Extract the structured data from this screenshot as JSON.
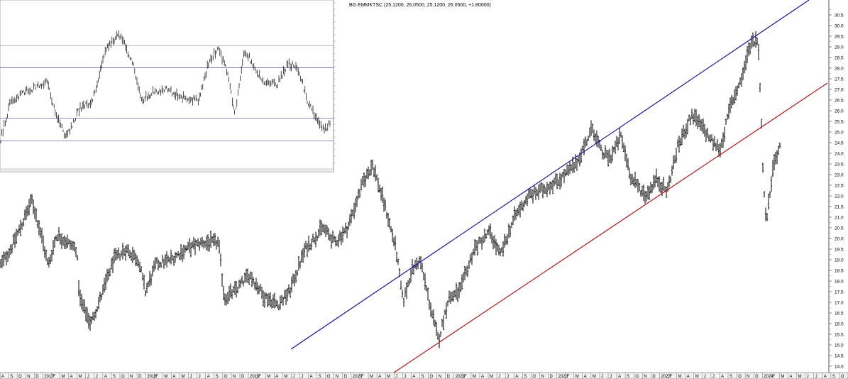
{
  "chart_data": [
    {
      "type": "ohlc",
      "title": "BG EMMKTSC (25.1200, 26.0500, 25.1200, 26.0500, +1.80000)",
      "ylim": [
        13.7,
        31.2
      ],
      "y_ticks": [
        "14.0",
        "14.5",
        "15.0",
        "15.5",
        "16.0",
        "16.5",
        "17.0",
        "17.5",
        "18.0",
        "18.5",
        "19.0",
        "19.5",
        "20.0",
        "20.5",
        "21.0",
        "21.5",
        "22.0",
        "22.5",
        "23.0",
        "23.5",
        "24.0",
        "24.5",
        "25.0",
        "25.5",
        "26.0",
        "26.5",
        "27.0",
        "27.5",
        "28.0",
        "28.5",
        "29.0",
        "29.5",
        "30.0",
        "30.5"
      ],
      "x_labels": [
        "A",
        "S",
        "O",
        "N",
        "D",
        "2017",
        "F",
        "M",
        "A",
        "M",
        "J",
        "J",
        "A",
        "S",
        "O",
        "N",
        "D",
        "2018",
        "F",
        "M",
        "A",
        "M",
        "J",
        "J",
        "A",
        "S",
        "O",
        "N",
        "D",
        "2019",
        "F",
        "M",
        "A",
        "M",
        "J",
        "J",
        "A",
        "S",
        "O",
        "N",
        "D",
        "2020",
        "F",
        "M",
        "A",
        "M",
        "J",
        "J",
        "A",
        "S",
        "O",
        "N",
        "D",
        "2021",
        "F",
        "M",
        "A",
        "M",
        "J",
        "J",
        "A",
        "S",
        "O",
        "N",
        "D",
        "2022",
        "F",
        "M",
        "A",
        "M",
        "J",
        "J",
        "A",
        "S",
        "O",
        "N",
        "D",
        "2023",
        "F",
        "M",
        "A",
        "M",
        "J",
        "J",
        "A",
        "S",
        "O",
        "N",
        "D",
        "2024",
        "F",
        "M",
        "A",
        "M",
        "J",
        "J",
        "A",
        "S",
        "O"
      ],
      "anchors": [
        {
          "x": 0,
          "y": 18.7
        },
        {
          "x": 15,
          "y": 19.5
        },
        {
          "x": 30,
          "y": 20.6
        },
        {
          "x": 45,
          "y": 21.8
        },
        {
          "x": 58,
          "y": 20.2
        },
        {
          "x": 68,
          "y": 18.7
        },
        {
          "x": 80,
          "y": 20.2
        },
        {
          "x": 95,
          "y": 19.8
        },
        {
          "x": 108,
          "y": 19.5
        },
        {
          "x": 112,
          "y": 17.2
        },
        {
          "x": 128,
          "y": 16.0
        },
        {
          "x": 145,
          "y": 17.5
        },
        {
          "x": 160,
          "y": 19.0
        },
        {
          "x": 178,
          "y": 19.5
        },
        {
          "x": 195,
          "y": 19.0
        },
        {
          "x": 205,
          "y": 17.5
        },
        {
          "x": 220,
          "y": 18.8
        },
        {
          "x": 240,
          "y": 19.0
        },
        {
          "x": 262,
          "y": 19.5
        },
        {
          "x": 285,
          "y": 19.8
        },
        {
          "x": 308,
          "y": 19.8
        },
        {
          "x": 316,
          "y": 17.2
        },
        {
          "x": 330,
          "y": 17.5
        },
        {
          "x": 352,
          "y": 18.3
        },
        {
          "x": 372,
          "y": 17.3
        },
        {
          "x": 392,
          "y": 16.9
        },
        {
          "x": 408,
          "y": 17.5
        },
        {
          "x": 430,
          "y": 19.5
        },
        {
          "x": 455,
          "y": 20.5
        },
        {
          "x": 472,
          "y": 19.8
        },
        {
          "x": 490,
          "y": 20.5
        },
        {
          "x": 510,
          "y": 22.5
        },
        {
          "x": 525,
          "y": 23.5
        },
        {
          "x": 545,
          "y": 21.2
        },
        {
          "x": 558,
          "y": 19.5
        },
        {
          "x": 568,
          "y": 17.0
        },
        {
          "x": 580,
          "y": 18.5
        },
        {
          "x": 592,
          "y": 19.0
        },
        {
          "x": 605,
          "y": 17.0
        },
        {
          "x": 618,
          "y": 15.2
        },
        {
          "x": 632,
          "y": 17.2
        },
        {
          "x": 648,
          "y": 17.5
        },
        {
          "x": 668,
          "y": 19.5
        },
        {
          "x": 690,
          "y": 20.3
        },
        {
          "x": 705,
          "y": 19.2
        },
        {
          "x": 725,
          "y": 21.0
        },
        {
          "x": 745,
          "y": 22.0
        },
        {
          "x": 765,
          "y": 22.3
        },
        {
          "x": 790,
          "y": 22.8
        },
        {
          "x": 812,
          "y": 23.5
        },
        {
          "x": 835,
          "y": 25.2
        },
        {
          "x": 848,
          "y": 24.0
        },
        {
          "x": 860,
          "y": 23.8
        },
        {
          "x": 875,
          "y": 24.8
        },
        {
          "x": 890,
          "y": 22.8
        },
        {
          "x": 910,
          "y": 22.0
        },
        {
          "x": 925,
          "y": 22.8
        },
        {
          "x": 940,
          "y": 22.2
        },
        {
          "x": 955,
          "y": 24.3
        },
        {
          "x": 975,
          "y": 25.8
        },
        {
          "x": 990,
          "y": 25.2
        },
        {
          "x": 1005,
          "y": 24.5
        },
        {
          "x": 1015,
          "y": 24.2
        },
        {
          "x": 1030,
          "y": 26.3
        },
        {
          "x": 1045,
          "y": 27.5
        },
        {
          "x": 1058,
          "y": 29.2
        },
        {
          "x": 1068,
          "y": 29.4
        },
        {
          "x": 1072,
          "y": 26.5
        },
        {
          "x": 1075,
          "y": 23.2
        },
        {
          "x": 1080,
          "y": 20.8
        },
        {
          "x": 1090,
          "y": 23.5
        },
        {
          "x": 1100,
          "y": 24.4
        }
      ],
      "trendlines": [
        {
          "color": "#0000cc",
          "x1": 410,
          "y1": 14.8,
          "x2": 1140,
          "y2": 31.2
        },
        {
          "color": "#cc0000",
          "x1": 555,
          "y1": 13.7,
          "x2": 1166,
          "y2": 27.3
        }
      ]
    },
    {
      "type": "ohlc",
      "title": "",
      "hlines": [
        {
          "y": 0.272,
          "color": "#888888"
        },
        {
          "y": 0.405,
          "color": "#2222cc"
        },
        {
          "y": 0.705,
          "color": "#2222cc"
        },
        {
          "y": 0.84,
          "color": "#2222cc"
        }
      ],
      "anchors_norm": [
        {
          "x": 0.0,
          "y": 0.85
        },
        {
          "x": 0.03,
          "y": 0.62
        },
        {
          "x": 0.07,
          "y": 0.55
        },
        {
          "x": 0.11,
          "y": 0.52
        },
        {
          "x": 0.14,
          "y": 0.48
        },
        {
          "x": 0.17,
          "y": 0.68
        },
        {
          "x": 0.2,
          "y": 0.82
        },
        {
          "x": 0.24,
          "y": 0.65
        },
        {
          "x": 0.28,
          "y": 0.6
        },
        {
          "x": 0.3,
          "y": 0.45
        },
        {
          "x": 0.32,
          "y": 0.3
        },
        {
          "x": 0.36,
          "y": 0.2
        },
        {
          "x": 0.4,
          "y": 0.36
        },
        {
          "x": 0.43,
          "y": 0.6
        },
        {
          "x": 0.46,
          "y": 0.55
        },
        {
          "x": 0.5,
          "y": 0.53
        },
        {
          "x": 0.55,
          "y": 0.58
        },
        {
          "x": 0.6,
          "y": 0.6
        },
        {
          "x": 0.63,
          "y": 0.38
        },
        {
          "x": 0.66,
          "y": 0.28
        },
        {
          "x": 0.69,
          "y": 0.45
        },
        {
          "x": 0.71,
          "y": 0.68
        },
        {
          "x": 0.74,
          "y": 0.3
        },
        {
          "x": 0.77,
          "y": 0.4
        },
        {
          "x": 0.8,
          "y": 0.5
        },
        {
          "x": 0.84,
          "y": 0.5
        },
        {
          "x": 0.87,
          "y": 0.38
        },
        {
          "x": 0.9,
          "y": 0.4
        },
        {
          "x": 0.93,
          "y": 0.6
        },
        {
          "x": 0.96,
          "y": 0.72
        },
        {
          "x": 0.98,
          "y": 0.78
        },
        {
          "x": 1.0,
          "y": 0.72
        }
      ]
    }
  ]
}
